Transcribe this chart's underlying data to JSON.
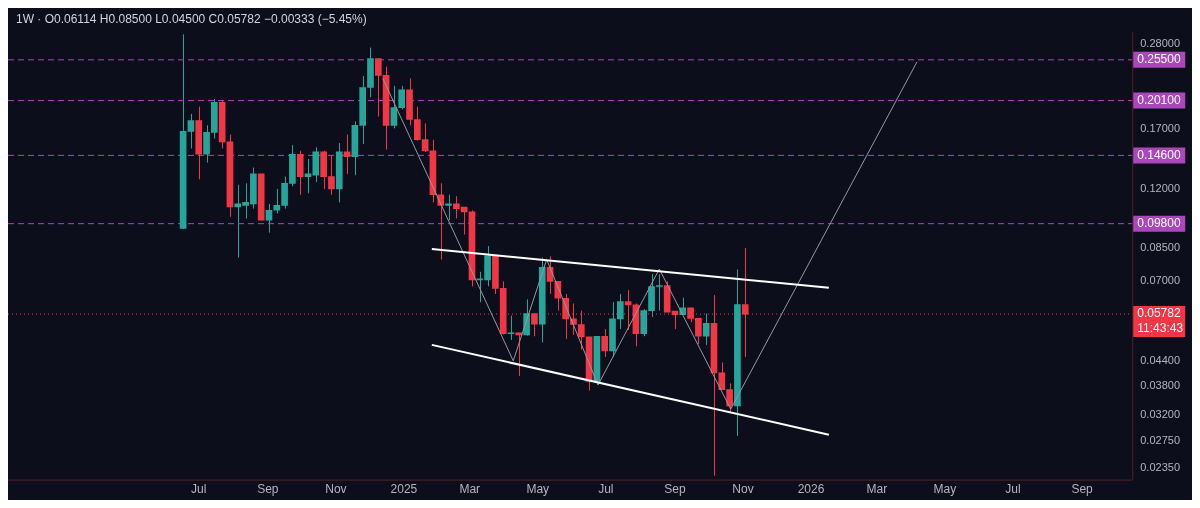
{
  "chart_data": {
    "type": "candlestick",
    "annotations": [
      "1W · O0.06114 H0.08500 L0.04500 C0.05782 −0.00333 (−5.45%)",
      "11:43:43"
    ],
    "x": [
      "2024-06-17",
      "2024-06-24",
      "2024-07-01",
      "2024-07-08",
      "2024-07-15",
      "2024-07-22",
      "2024-07-29",
      "2024-08-05",
      "2024-08-12",
      "2024-08-19",
      "2024-08-26",
      "2024-09-02",
      "2024-09-09",
      "2024-09-16",
      "2024-09-23",
      "2024-09-30",
      "2024-10-07",
      "2024-10-14",
      "2024-10-21",
      "2024-10-28",
      "2024-11-04",
      "2024-11-11",
      "2024-11-18",
      "2024-11-25",
      "2024-12-02",
      "2024-12-09",
      "2024-12-16",
      "2024-12-23",
      "2024-12-30",
      "2025-01-06",
      "2025-01-13",
      "2025-01-20",
      "2025-01-27",
      "2025-02-03",
      "2025-02-10",
      "2025-02-17",
      "2025-02-24",
      "2025-03-03",
      "2025-03-10",
      "2025-03-17",
      "2025-03-24",
      "2025-03-31",
      "2025-04-07",
      "2025-04-14",
      "2025-04-21",
      "2025-04-28",
      "2025-05-05",
      "2025-05-12",
      "2025-05-19",
      "2025-05-26",
      "2025-06-02",
      "2025-06-09",
      "2025-06-16",
      "2025-06-23",
      "2025-06-30",
      "2025-07-07",
      "2025-07-14",
      "2025-07-21",
      "2025-07-28",
      "2025-08-04",
      "2025-08-11",
      "2025-08-18",
      "2025-08-25",
      "2025-09-01",
      "2025-09-08",
      "2025-09-15",
      "2025-09-22",
      "2025-09-29",
      "2025-10-06",
      "2025-10-13",
      "2025-10-20",
      "2025-10-27",
      "2025-11-03"
    ],
    "ohlc": [
      [
        0.0953,
        0.296,
        0.095,
        0.168
      ],
      [
        0.168,
        0.186,
        0.152,
        0.179
      ],
      [
        0.179,
        0.194,
        0.127,
        0.147
      ],
      [
        0.147,
        0.174,
        0.14,
        0.167
      ],
      [
        0.167,
        0.203,
        0.161,
        0.199
      ],
      [
        0.199,
        0.201,
        0.152,
        0.158
      ],
      [
        0.158,
        0.165,
        0.102,
        0.108
      ],
      [
        0.108,
        0.123,
        0.0804,
        0.11
      ],
      [
        0.109,
        0.124,
        0.101,
        0.111
      ],
      [
        0.11,
        0.136,
        0.107,
        0.131
      ],
      [
        0.131,
        0.131,
        0.1,
        0.1
      ],
      [
        0.1,
        0.11,
        0.093,
        0.106
      ],
      [
        0.106,
        0.12,
        0.104,
        0.109
      ],
      [
        0.109,
        0.129,
        0.107,
        0.124
      ],
      [
        0.124,
        0.155,
        0.122,
        0.147
      ],
      [
        0.147,
        0.15,
        0.116,
        0.129
      ],
      [
        0.129,
        0.143,
        0.117,
        0.131
      ],
      [
        0.13,
        0.153,
        0.125,
        0.149
      ],
      [
        0.149,
        0.15,
        0.12,
        0.129
      ],
      [
        0.129,
        0.146,
        0.116,
        0.12
      ],
      [
        0.12,
        0.157,
        0.111,
        0.149
      ],
      [
        0.149,
        0.165,
        0.131,
        0.145
      ],
      [
        0.145,
        0.178,
        0.13,
        0.174
      ],
      [
        0.174,
        0.232,
        0.156,
        0.217
      ],
      [
        0.217,
        0.274,
        0.205,
        0.257
      ],
      [
        0.257,
        0.257,
        0.183,
        0.233
      ],
      [
        0.233,
        0.245,
        0.151,
        0.174
      ],
      [
        0.174,
        0.219,
        0.171,
        0.193
      ],
      [
        0.193,
        0.219,
        0.191,
        0.214
      ],
      [
        0.214,
        0.229,
        0.174,
        0.18
      ],
      [
        0.18,
        0.194,
        0.159,
        0.16
      ],
      [
        0.16,
        0.176,
        0.149,
        0.15
      ],
      [
        0.15,
        0.16,
        0.111,
        0.116
      ],
      [
        0.116,
        0.124,
        0.0795,
        0.109
      ],
      [
        0.109,
        0.116,
        0.1,
        0.11
      ],
      [
        0.11,
        0.115,
        0.101,
        0.107
      ],
      [
        0.108,
        0.108,
        0.092,
        0.105
      ],
      [
        0.105,
        0.106,
        0.068,
        0.0706
      ],
      [
        0.0706,
        0.074,
        0.062,
        0.071
      ],
      [
        0.0706,
        0.086,
        0.068,
        0.0812
      ],
      [
        0.0812,
        0.0812,
        0.065,
        0.0672
      ],
      [
        0.0672,
        0.07,
        0.0513,
        0.0516
      ],
      [
        0.0516,
        0.0573,
        0.0497,
        0.0518
      ],
      [
        0.0518,
        0.0518,
        0.0403,
        0.0512
      ],
      [
        0.0512,
        0.063,
        0.051,
        0.058
      ],
      [
        0.058,
        0.058,
        0.0508,
        0.0545
      ],
      [
        0.0545,
        0.0804,
        0.049,
        0.076
      ],
      [
        0.076,
        0.081,
        0.065,
        0.07
      ],
      [
        0.07,
        0.07,
        0.059,
        0.0634
      ],
      [
        0.0634,
        0.065,
        0.05,
        0.0562
      ],
      [
        0.0562,
        0.0615,
        0.0512,
        0.0544
      ],
      [
        0.0544,
        0.059,
        0.047,
        0.0506
      ],
      [
        0.0506,
        0.0506,
        0.037,
        0.039
      ],
      [
        0.039,
        0.0508,
        0.039,
        0.0508
      ],
      [
        0.0508,
        0.053,
        0.045,
        0.0466
      ],
      [
        0.0466,
        0.062,
        0.045,
        0.0562
      ],
      [
        0.0562,
        0.065,
        0.053,
        0.0622
      ],
      [
        0.0622,
        0.0665,
        0.0527,
        0.061
      ],
      [
        0.061,
        0.0615,
        0.0479,
        0.0516
      ],
      [
        0.0516,
        0.0595,
        0.0508,
        0.059
      ],
      [
        0.059,
        0.073,
        0.0569,
        0.0679
      ],
      [
        0.0679,
        0.073,
        0.059,
        0.0683
      ],
      [
        0.0683,
        0.07,
        0.0585,
        0.0585
      ],
      [
        0.0588,
        0.0588,
        0.053,
        0.0576
      ],
      [
        0.0576,
        0.0636,
        0.0576,
        0.06
      ],
      [
        0.06,
        0.06,
        0.0552,
        0.0564
      ],
      [
        0.0564,
        0.0564,
        0.0485,
        0.0508
      ],
      [
        0.0508,
        0.058,
        0.0483,
        0.0548
      ],
      [
        0.0548,
        0.0646,
        0.0225,
        0.041
      ],
      [
        0.041,
        0.0436,
        0.0372,
        0.0372
      ],
      [
        0.0372,
        0.0386,
        0.0325,
        0.0338
      ],
      [
        0.0338,
        0.075,
        0.0284,
        0.06114
      ],
      [
        0.06114,
        0.085,
        0.045,
        0.05782
      ]
    ],
    "colors": [
      "#26a69a",
      "#26a69a",
      "#f23645",
      "#26a69a",
      "#26a69a",
      "#f23645",
      "#f23645",
      "#26a69a",
      "#26a69a",
      "#26a69a",
      "#f23645",
      "#26a69a",
      "#26a69a",
      "#26a69a",
      "#26a69a",
      "#f23645",
      "#26a69a",
      "#26a69a",
      "#f23645",
      "#f23645",
      "#26a69a",
      "#f23645",
      "#26a69a",
      "#26a69a",
      "#26a69a",
      "#f23645",
      "#f23645",
      "#26a69a",
      "#26a69a",
      "#f23645",
      "#f23645",
      "#f23645",
      "#f23645",
      "#f23645",
      "#26a69a",
      "#f23645",
      "#f23645",
      "#f23645",
      "#26a69a",
      "#26a69a",
      "#f23645",
      "#f23645",
      "#26a69a",
      "#f23645",
      "#26a69a",
      "#f23645",
      "#26a69a",
      "#f23645",
      "#f23645",
      "#f23645",
      "#f23645",
      "#f23645",
      "#f23645",
      "#26a69a",
      "#f23645",
      "#26a69a",
      "#26a69a",
      "#f23645",
      "#f23645",
      "#26a69a",
      "#26a69a",
      "#26a69a",
      "#f23645",
      "#f23645",
      "#26a69a",
      "#f23645",
      "#f23645",
      "#26a69a",
      "#f23645",
      "#f23645",
      "#f23645",
      "#26a69a",
      "#f23645"
    ],
    "series": [
      {
        "type": "line",
        "color": "#ffffff",
        "x": [
          "2025-01-26",
          "2026-01-17"
        ],
        "values": [
          0.0845,
          0.0674
        ]
      },
      {
        "type": "line",
        "color": "#ffffff",
        "x": [
          "2025-01-26",
          "2026-01-17"
        ],
        "values": [
          0.0483,
          0.0286
        ]
      },
      {
        "type": "line",
        "color": "#9598a1",
        "x": [
          "2024-12-13",
          "2025-04-09",
          "2025-05-09",
          "2025-06-24",
          "2025-08-18",
          "2025-10-21",
          "2026-04-06"
        ],
        "values": [
          0.229,
          0.044,
          0.0795,
          0.0382,
          0.0752,
          0.0332,
          0.252
        ]
      }
    ],
    "ref_lines": [
      {
        "axis": "y",
        "value": 0.255,
        "label": "0.25500",
        "color": "#ab47bc",
        "line_style": "dashed"
      },
      {
        "axis": "y",
        "value": 0.201,
        "label": "0.20100",
        "color": "#ab47bc",
        "line_style": "dashed"
      },
      {
        "axis": "y",
        "value": 0.146,
        "label": "0.14600",
        "color": "#ab47bc",
        "line_style": "dashed"
      },
      {
        "axis": "y",
        "value": 0.098,
        "label": "0.09800",
        "color": "#ab47bc",
        "line_style": "dashed"
      },
      {
        "axis": "y",
        "value": 0.05782,
        "label": "0.05782",
        "color": "#f23645",
        "line_style": "dotted"
      }
    ],
    "xlim": [
      "2024-01-12",
      "2026-10-16"
    ],
    "xticks": [
      {
        "value": "2024-07-01",
        "label": "Jul"
      },
      {
        "value": "2024-09-01",
        "label": "Sep"
      },
      {
        "value": "2024-11-01",
        "label": "Nov"
      },
      {
        "value": "2025-01-01",
        "label": "2025"
      },
      {
        "value": "2025-03-01",
        "label": "Mar"
      },
      {
        "value": "2025-05-01",
        "label": "May"
      },
      {
        "value": "2025-07-01",
        "label": "Jul"
      },
      {
        "value": "2025-09-01",
        "label": "Sep"
      },
      {
        "value": "2025-11-01",
        "label": "Nov"
      },
      {
        "value": "2026-01-01",
        "label": "2026"
      },
      {
        "value": "2026-03-01",
        "label": "Mar"
      },
      {
        "value": "2026-05-01",
        "label": "May"
      },
      {
        "value": "2026-07-01",
        "label": "Jul"
      },
      {
        "value": "2026-09-01",
        "label": "Sep"
      }
    ],
    "ylim": [
      0.022,
      0.3
    ],
    "yticks": [
      {
        "value": 0.28,
        "label": "0.28000"
      },
      {
        "value": 0.17,
        "label": "0.17000"
      },
      {
        "value": 0.12,
        "label": "0.12000"
      },
      {
        "value": 0.085,
        "label": "0.08500"
      },
      {
        "value": 0.07,
        "label": "0.07000"
      },
      {
        "value": 0.044,
        "label": "0.04400"
      },
      {
        "value": 0.038,
        "label": "0.03800"
      },
      {
        "value": 0.032,
        "label": "0.03200"
      },
      {
        "value": 0.0275,
        "label": "0.02750"
      },
      {
        "value": 0.0235,
        "label": "0.02350"
      }
    ],
    "log": true
  }
}
